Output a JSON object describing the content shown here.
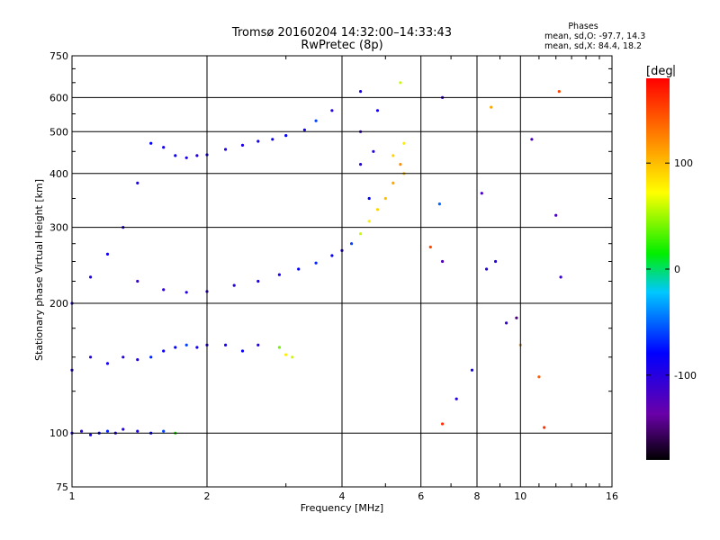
{
  "chart_data": {
    "type": "scatter",
    "title": "Tromsø 20160204 14:32:00–14:33:43",
    "subtitle": "RwPretec (8p)",
    "xlabel": "Frequency [MHz]",
    "ylabel": "Stationary phase Virtual Height [km]",
    "x_scale": "log",
    "y_scale": "log",
    "xlim": [
      1,
      16
    ],
    "ylim": [
      75,
      750
    ],
    "x_ticks": [
      1,
      2,
      4,
      6,
      8,
      10,
      16
    ],
    "x_tick_labels": [
      "1",
      "2",
      "4",
      "6",
      "8",
      "10",
      "16"
    ],
    "y_ticks": [
      75,
      100,
      200,
      300,
      400,
      500,
      600,
      750
    ],
    "y_tick_labels": [
      "75",
      "100",
      "200",
      "300",
      "400",
      "500",
      "600",
      "750"
    ],
    "grid": true,
    "info": {
      "heading": "Phases",
      "line_o": "mean, sd,O: -97.7, 14.3",
      "line_x": "mean, sd,X:  84.4, 18.2"
    },
    "colorbar": {
      "unit_label": "[deg",
      "range": [
        -180,
        180
      ],
      "ticks": [
        100,
        0,
        -100
      ],
      "tick_labels": [
        "100",
        "0",
        "-100"
      ]
    },
    "series": [
      {
        "points": [
          [
            1.0,
            100,
            -95
          ],
          [
            1.05,
            101,
            -100
          ],
          [
            1.1,
            99,
            -90
          ],
          [
            1.15,
            100,
            -85
          ],
          [
            1.2,
            101,
            -70
          ],
          [
            1.25,
            100,
            -95
          ],
          [
            1.3,
            102,
            -100
          ],
          [
            1.4,
            101,
            -90
          ],
          [
            1.5,
            100,
            -80
          ],
          [
            1.6,
            101,
            -60
          ],
          [
            1.7,
            100,
            20
          ],
          [
            1.0,
            140,
            -100
          ],
          [
            1.1,
            150,
            -95
          ],
          [
            1.2,
            145,
            -90
          ],
          [
            1.3,
            150,
            -100
          ],
          [
            1.4,
            148,
            -95
          ],
          [
            1.5,
            150,
            -70
          ],
          [
            1.6,
            155,
            -85
          ],
          [
            1.7,
            158,
            -80
          ],
          [
            1.8,
            160,
            -60
          ],
          [
            1.9,
            158,
            -90
          ],
          [
            2.0,
            160,
            -100
          ],
          [
            2.2,
            160,
            -90
          ],
          [
            2.4,
            155,
            -85
          ],
          [
            2.6,
            160,
            -100
          ],
          [
            2.9,
            158,
            40
          ],
          [
            3.0,
            152,
            80
          ],
          [
            3.1,
            150,
            60
          ],
          [
            1.0,
            200,
            -100
          ],
          [
            1.1,
            230,
            -95
          ],
          [
            1.2,
            260,
            -90
          ],
          [
            1.3,
            300,
            -100
          ],
          [
            1.4,
            380,
            -95
          ],
          [
            1.5,
            470,
            -80
          ],
          [
            1.6,
            460,
            -90
          ],
          [
            1.7,
            440,
            -85
          ],
          [
            1.8,
            435,
            -95
          ],
          [
            1.9,
            440,
            -100
          ],
          [
            2.0,
            442,
            -90
          ],
          [
            2.2,
            455,
            -100
          ],
          [
            2.4,
            465,
            -95
          ],
          [
            2.6,
            475,
            -90
          ],
          [
            2.8,
            480,
            -85
          ],
          [
            3.0,
            490,
            -80
          ],
          [
            3.3,
            505,
            -90
          ],
          [
            3.5,
            530,
            -60
          ],
          [
            3.8,
            560,
            -100
          ],
          [
            1.4,
            225,
            -110
          ],
          [
            1.6,
            215,
            -105
          ],
          [
            1.8,
            212,
            -100
          ],
          [
            2.0,
            213,
            -110
          ],
          [
            2.3,
            220,
            -100
          ],
          [
            2.6,
            225,
            -95
          ],
          [
            2.9,
            233,
            -90
          ],
          [
            3.2,
            240,
            -80
          ],
          [
            3.5,
            248,
            -70
          ],
          [
            3.8,
            258,
            -85
          ],
          [
            4.0,
            265,
            -100
          ],
          [
            4.2,
            275,
            -60
          ],
          [
            4.4,
            290,
            60
          ],
          [
            4.6,
            310,
            80
          ],
          [
            4.8,
            330,
            90
          ],
          [
            5.0,
            350,
            100
          ],
          [
            5.2,
            380,
            110
          ],
          [
            5.4,
            420,
            120
          ],
          [
            5.5,
            470,
            80
          ],
          [
            4.4,
            420,
            -100
          ],
          [
            4.4,
            500,
            -110
          ],
          [
            4.4,
            620,
            -90
          ],
          [
            4.6,
            350,
            -80
          ],
          [
            4.7,
            450,
            -100
          ],
          [
            4.8,
            560,
            -90
          ],
          [
            5.2,
            440,
            90
          ],
          [
            5.4,
            650,
            60
          ],
          [
            5.5,
            400,
            100
          ],
          [
            6.3,
            270,
            150
          ],
          [
            6.6,
            340,
            -50
          ],
          [
            6.7,
            250,
            -120
          ],
          [
            6.7,
            600,
            -110
          ],
          [
            6.7,
            105,
            160
          ],
          [
            7.2,
            120,
            -100
          ],
          [
            7.8,
            140,
            -90
          ],
          [
            8.2,
            360,
            -120
          ],
          [
            8.4,
            240,
            -100
          ],
          [
            8.6,
            570,
            110
          ],
          [
            8.8,
            250,
            -100
          ],
          [
            9.3,
            180,
            -110
          ],
          [
            9.8,
            185,
            -150
          ],
          [
            10.0,
            160,
            110
          ],
          [
            10.6,
            480,
            -120
          ],
          [
            11.0,
            135,
            140
          ],
          [
            11.3,
            103,
            160
          ],
          [
            12.0,
            320,
            -120
          ],
          [
            12.2,
            620,
            150
          ],
          [
            12.3,
            230,
            -110
          ]
        ]
      }
    ]
  }
}
